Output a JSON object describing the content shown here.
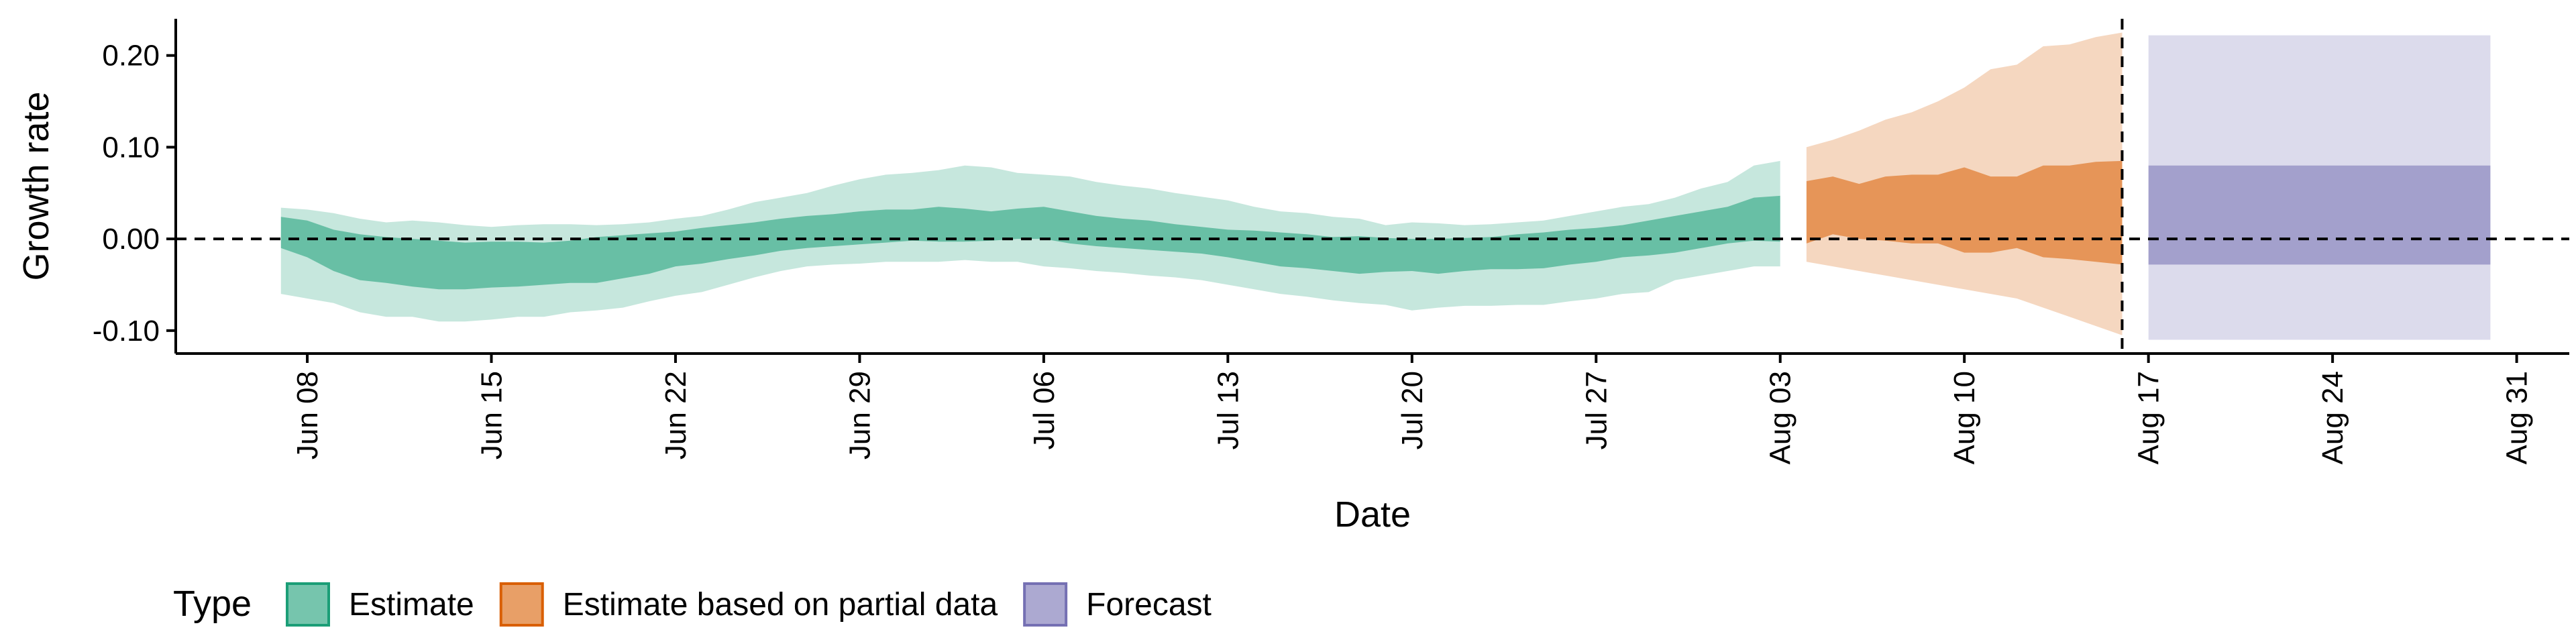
{
  "chart_data": {
    "type": "area",
    "title": "",
    "xlabel": "Date",
    "ylabel": "Growth rate",
    "ylim": [
      -0.125,
      0.24
    ],
    "xlim": [
      "2021-06-03",
      "2021-09-02"
    ],
    "y_ticks": [
      -0.1,
      0.0,
      0.1,
      0.2
    ],
    "y_tick_labels": [
      "-0.10",
      "0.00",
      "0.10",
      "0.20"
    ],
    "x_ticks": [
      "2021-06-08",
      "2021-06-15",
      "2021-06-22",
      "2021-06-29",
      "2021-07-06",
      "2021-07-13",
      "2021-07-20",
      "2021-07-27",
      "2021-08-03",
      "2021-08-10",
      "2021-08-17",
      "2021-08-24",
      "2021-08-31"
    ],
    "x_tick_labels": [
      "Jun 08",
      "Jun 15",
      "Jun 22",
      "Jun 29",
      "Jul 06",
      "Jul 13",
      "Jul 20",
      "Jul 27",
      "Aug 03",
      "Aug 10",
      "Aug 17",
      "Aug 24",
      "Aug 31"
    ],
    "reference_hline_y": 0,
    "reference_vline_x": "2021-08-16",
    "grid": false,
    "legend": {
      "position": "bottom-left",
      "title": "Type",
      "entries": [
        "Estimate",
        "Estimate based on partial data",
        "Forecast"
      ]
    },
    "series": [
      {
        "name": "Estimate",
        "color": "#1b9e77",
        "x": [
          "2021-06-07",
          "2021-06-08",
          "2021-06-09",
          "2021-06-10",
          "2021-06-11",
          "2021-06-12",
          "2021-06-13",
          "2021-06-14",
          "2021-06-15",
          "2021-06-16",
          "2021-06-17",
          "2021-06-18",
          "2021-06-19",
          "2021-06-20",
          "2021-06-21",
          "2021-06-22",
          "2021-06-23",
          "2021-06-24",
          "2021-06-25",
          "2021-06-26",
          "2021-06-27",
          "2021-06-28",
          "2021-06-29",
          "2021-06-30",
          "2021-07-01",
          "2021-07-02",
          "2021-07-03",
          "2021-07-04",
          "2021-07-05",
          "2021-07-06",
          "2021-07-07",
          "2021-07-08",
          "2021-07-09",
          "2021-07-10",
          "2021-07-11",
          "2021-07-12",
          "2021-07-13",
          "2021-07-14",
          "2021-07-15",
          "2021-07-16",
          "2021-07-17",
          "2021-07-18",
          "2021-07-19",
          "2021-07-20",
          "2021-07-21",
          "2021-07-22",
          "2021-07-23",
          "2021-07-24",
          "2021-07-25",
          "2021-07-26",
          "2021-07-27",
          "2021-07-28",
          "2021-07-29",
          "2021-07-30",
          "2021-07-31",
          "2021-08-01",
          "2021-08-02",
          "2021-08-03"
        ],
        "lower90": [
          -0.06,
          -0.065,
          -0.07,
          -0.08,
          -0.085,
          -0.085,
          -0.09,
          -0.09,
          -0.088,
          -0.085,
          -0.085,
          -0.08,
          -0.078,
          -0.075,
          -0.068,
          -0.062,
          -0.058,
          -0.05,
          -0.042,
          -0.035,
          -0.03,
          -0.028,
          -0.027,
          -0.025,
          -0.025,
          -0.025,
          -0.023,
          -0.025,
          -0.025,
          -0.03,
          -0.032,
          -0.035,
          -0.037,
          -0.04,
          -0.042,
          -0.045,
          -0.05,
          -0.055,
          -0.06,
          -0.063,
          -0.067,
          -0.07,
          -0.072,
          -0.078,
          -0.075,
          -0.073,
          -0.073,
          -0.072,
          -0.072,
          -0.068,
          -0.065,
          -0.06,
          -0.058,
          -0.045,
          -0.04,
          -0.035,
          -0.03,
          -0.03
        ],
        "lower50": [
          -0.01,
          -0.02,
          -0.035,
          -0.045,
          -0.048,
          -0.052,
          -0.055,
          -0.055,
          -0.053,
          -0.052,
          -0.05,
          -0.048,
          -0.048,
          -0.043,
          -0.038,
          -0.03,
          -0.027,
          -0.022,
          -0.018,
          -0.013,
          -0.01,
          -0.008,
          -0.006,
          -0.004,
          -0.002,
          -0.003,
          -0.003,
          -0.002,
          0.0,
          0.0,
          -0.005,
          -0.008,
          -0.01,
          -0.012,
          -0.014,
          -0.016,
          -0.02,
          -0.025,
          -0.03,
          -0.032,
          -0.035,
          -0.038,
          -0.036,
          -0.035,
          -0.038,
          -0.035,
          -0.033,
          -0.033,
          -0.032,
          -0.028,
          -0.025,
          -0.02,
          -0.018,
          -0.015,
          -0.01,
          -0.005,
          -0.002,
          -0.003
        ],
        "upper50": [
          0.024,
          0.02,
          0.01,
          0.005,
          0.002,
          0.0,
          -0.002,
          -0.004,
          -0.003,
          -0.003,
          -0.004,
          -0.002,
          0.002,
          0.004,
          0.006,
          0.008,
          0.012,
          0.015,
          0.018,
          0.022,
          0.025,
          0.027,
          0.03,
          0.032,
          0.032,
          0.035,
          0.033,
          0.03,
          0.033,
          0.035,
          0.03,
          0.025,
          0.022,
          0.02,
          0.016,
          0.013,
          0.01,
          0.009,
          0.007,
          0.005,
          0.002,
          0.003,
          0.001,
          0.0,
          0.0,
          0.001,
          0.002,
          0.005,
          0.007,
          0.01,
          0.012,
          0.015,
          0.02,
          0.025,
          0.03,
          0.035,
          0.045,
          0.047
        ],
        "upper90": [
          0.034,
          0.032,
          0.028,
          0.022,
          0.018,
          0.02,
          0.018,
          0.015,
          0.013,
          0.015,
          0.016,
          0.016,
          0.015,
          0.016,
          0.018,
          0.022,
          0.025,
          0.032,
          0.04,
          0.045,
          0.05,
          0.058,
          0.065,
          0.07,
          0.072,
          0.075,
          0.08,
          0.078,
          0.072,
          0.07,
          0.068,
          0.062,
          0.058,
          0.055,
          0.05,
          0.046,
          0.042,
          0.035,
          0.03,
          0.028,
          0.024,
          0.022,
          0.015,
          0.018,
          0.017,
          0.015,
          0.016,
          0.018,
          0.02,
          0.025,
          0.03,
          0.035,
          0.038,
          0.045,
          0.055,
          0.062,
          0.08,
          0.085
        ]
      },
      {
        "name": "Estimate based on partial data",
        "color": "#d95f02",
        "x": [
          "2021-08-04",
          "2021-08-05",
          "2021-08-06",
          "2021-08-07",
          "2021-08-08",
          "2021-08-09",
          "2021-08-10",
          "2021-08-11",
          "2021-08-12",
          "2021-08-13",
          "2021-08-14",
          "2021-08-15",
          "2021-08-16"
        ],
        "lower90": [
          -0.025,
          -0.03,
          -0.035,
          -0.04,
          -0.045,
          -0.05,
          -0.055,
          -0.06,
          -0.065,
          -0.075,
          -0.085,
          -0.095,
          -0.105
        ],
        "lower50": [
          -0.005,
          0.005,
          0.0,
          -0.002,
          -0.005,
          -0.005,
          -0.015,
          -0.015,
          -0.01,
          -0.02,
          -0.022,
          -0.025,
          -0.028
        ],
        "upper50": [
          0.063,
          0.068,
          0.06,
          0.068,
          0.07,
          0.07,
          0.078,
          0.068,
          0.068,
          0.08,
          0.08,
          0.084,
          0.085
        ],
        "upper90": [
          0.1,
          0.108,
          0.118,
          0.13,
          0.138,
          0.15,
          0.165,
          0.185,
          0.19,
          0.21,
          0.212,
          0.22,
          0.225
        ]
      },
      {
        "name": "Forecast",
        "color": "#7570b3",
        "x": [
          "2021-08-17",
          "2021-08-30"
        ],
        "lower90": [
          -0.11,
          -0.11
        ],
        "lower50": [
          -0.028,
          -0.028
        ],
        "upper50": [
          0.08,
          0.08
        ],
        "upper90": [
          0.222,
          0.222
        ]
      }
    ]
  }
}
